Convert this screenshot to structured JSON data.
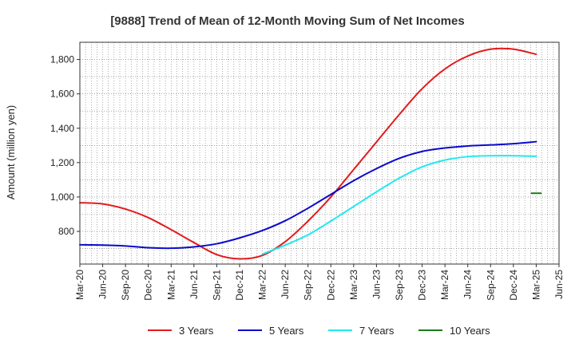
{
  "chart_data": {
    "type": "line",
    "title": "[9888]  Trend of Mean of 12-Month Moving Sum of Net Incomes",
    "xlabel": "",
    "ylabel": "Amount (million yen)",
    "x_tick_labels": [
      "Mar-20",
      "Jun-20",
      "Sep-20",
      "Dec-20",
      "Mar-21",
      "Jun-21",
      "Sep-21",
      "Dec-21",
      "Mar-22",
      "Jun-22",
      "Sep-22",
      "Dec-22",
      "Mar-23",
      "Jun-23",
      "Sep-23",
      "Dec-23",
      "Mar-24",
      "Jun-24",
      "Sep-24",
      "Dec-24",
      "Mar-25",
      "Jun-25"
    ],
    "y_ticks": [
      800,
      1000,
      1200,
      1400,
      1600,
      1800
    ],
    "ylim": [
      610,
      1900
    ],
    "grid": true,
    "legend_position": "bottom",
    "series": [
      {
        "name": "3 Years",
        "color": "#e31a1c",
        "points": [
          [
            "Mar-20",
            967
          ],
          [
            "Jun-20",
            960
          ],
          [
            "Sep-20",
            930
          ],
          [
            "Dec-20",
            880
          ],
          [
            "Mar-21",
            810
          ],
          [
            "Jun-21",
            735
          ],
          [
            "Sep-21",
            665
          ],
          [
            "Dec-21",
            640
          ],
          [
            "Mar-22",
            660
          ],
          [
            "Jun-22",
            740
          ],
          [
            "Sep-22",
            860
          ],
          [
            "Dec-22",
            1000
          ],
          [
            "Mar-23",
            1160
          ],
          [
            "Jun-23",
            1320
          ],
          [
            "Sep-23",
            1480
          ],
          [
            "Dec-23",
            1630
          ],
          [
            "Mar-24",
            1745
          ],
          [
            "Jun-24",
            1820
          ],
          [
            "Sep-24",
            1860
          ],
          [
            "Dec-24",
            1860
          ],
          [
            "Mar-25",
            1830
          ]
        ]
      },
      {
        "name": "5 Years",
        "color": "#0a0acc",
        "points": [
          [
            "Mar-20",
            722
          ],
          [
            "Jun-20",
            720
          ],
          [
            "Sep-20",
            715
          ],
          [
            "Dec-20",
            705
          ],
          [
            "Mar-21",
            702
          ],
          [
            "Jun-21",
            710
          ],
          [
            "Sep-21",
            728
          ],
          [
            "Dec-21",
            762
          ],
          [
            "Mar-22",
            805
          ],
          [
            "Jun-22",
            862
          ],
          [
            "Sep-22",
            935
          ],
          [
            "Dec-22",
            1015
          ],
          [
            "Mar-23",
            1095
          ],
          [
            "Jun-23",
            1165
          ],
          [
            "Sep-23",
            1225
          ],
          [
            "Dec-23",
            1265
          ],
          [
            "Mar-24",
            1285
          ],
          [
            "Jun-24",
            1297
          ],
          [
            "Sep-24",
            1303
          ],
          [
            "Dec-24",
            1310
          ],
          [
            "Mar-25",
            1322
          ]
        ]
      },
      {
        "name": "7 Years",
        "color": "#22e8f0",
        "points": [
          [
            "Mar-22",
            668
          ],
          [
            "Jun-22",
            720
          ],
          [
            "Sep-22",
            780
          ],
          [
            "Dec-22",
            860
          ],
          [
            "Mar-23",
            945
          ],
          [
            "Jun-23",
            1030
          ],
          [
            "Sep-23",
            1110
          ],
          [
            "Dec-23",
            1175
          ],
          [
            "Mar-24",
            1215
          ],
          [
            "Jun-24",
            1235
          ],
          [
            "Sep-24",
            1240
          ],
          [
            "Dec-24",
            1240
          ],
          [
            "Mar-25",
            1237
          ]
        ]
      },
      {
        "name": "10 Years",
        "color": "#1a7a1a",
        "points": [
          [
            "Mar-25",
            1022
          ]
        ]
      }
    ]
  }
}
